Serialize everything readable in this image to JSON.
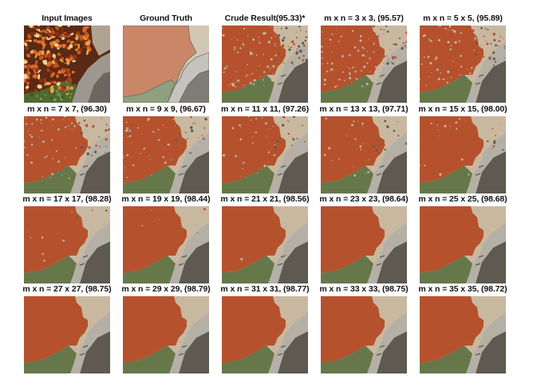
{
  "figure": {
    "panels": [
      {
        "caption": "Input Images",
        "kind": "input"
      },
      {
        "caption": "Ground Truth",
        "kind": "gt"
      },
      {
        "caption": "Crude Result(95.33)*",
        "kind": "seg",
        "noise": 1.0
      },
      {
        "caption": "m x n = 3 x 3, (95.57)",
        "kind": "seg",
        "noise": 0.85
      },
      {
        "caption": "m x n = 5 x 5, (95.89)",
        "kind": "seg",
        "noise": 0.72
      },
      {
        "caption": "m x n = 7 x 7, (96.30)",
        "kind": "seg",
        "noise": 0.6
      },
      {
        "caption": "m x n = 9 x 9, (96.67)",
        "kind": "seg",
        "noise": 0.5
      },
      {
        "caption": "m x n = 11 x 11, (97.26)",
        "kind": "seg",
        "noise": 0.4
      },
      {
        "caption": "m x n = 13 x 13, (97.71)",
        "kind": "seg",
        "noise": 0.28
      },
      {
        "caption": "m x n = 15 x 15, (98.00)",
        "kind": "seg",
        "noise": 0.2
      },
      {
        "caption": "m x n = 17 x 17, (98.28)",
        "kind": "seg",
        "noise": 0.1
      },
      {
        "caption": "m x n = 19 x 19, (98.44)",
        "kind": "seg",
        "noise": 0.05
      },
      {
        "caption": "m x n = 21 x 21, (98.56)",
        "kind": "seg",
        "noise": 0.02
      },
      {
        "caption": "m x n = 23 x 23, (98.64)",
        "kind": "seg",
        "noise": 0
      },
      {
        "caption": "m x n = 25 x 25, (98.68)",
        "kind": "seg",
        "noise": 0
      },
      {
        "caption": "m x n = 27 x 27, (98.75)",
        "kind": "seg",
        "noise": 0
      },
      {
        "caption": "m x n = 29 x 29, (98.79)",
        "kind": "seg",
        "noise": 0
      },
      {
        "caption": "m x n = 31 x 31, (98.77)",
        "kind": "seg",
        "noise": 0
      },
      {
        "caption": "m x n = 33 x 33, (98.75)",
        "kind": "seg",
        "noise": 0
      },
      {
        "caption": "m x n = 35 x 35, (98.72)",
        "kind": "seg",
        "noise": 0
      }
    ],
    "colors": {
      "leaves": "#b5522d",
      "background": "#c9b8a0",
      "grass": "#66784a",
      "stone": "#b5b0a6",
      "dark": "#5e5a52",
      "gt_leaves": "#c98767",
      "gt_background": "#d2c7b3",
      "gt_grass": "#8ea07e",
      "gt_stone": "#c6c3be",
      "gt_dark": "#7f7b75"
    }
  }
}
